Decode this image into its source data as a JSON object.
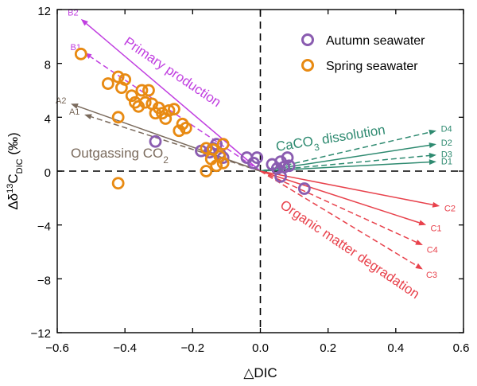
{
  "chart_data": {
    "type": "scatter",
    "xlabel": "△DIC",
    "ylabel_main": "Δδ",
    "ylabel_sup": "13",
    "ylabel_c": "C",
    "ylabel_sub": "DIC",
    "ylabel_unit": " (‰)",
    "xlim": [
      -0.6,
      0.6
    ],
    "ylim": [
      -12,
      12
    ],
    "xticks": [
      "−0.6",
      "−0.4",
      "−0.2",
      "0.0",
      "0.2",
      "0.4",
      "0.6"
    ],
    "yticks": [
      "12",
      "8",
      "4",
      "0",
      "−4",
      "−8",
      "−12"
    ],
    "grid": false,
    "legend_position": "top-right",
    "legend": [
      {
        "label": "Autumn seawater",
        "color": "#8a5cb0"
      },
      {
        "label": "Spring seawater",
        "color": "#e88a12"
      }
    ],
    "process_labels": [
      {
        "text": "Primary production",
        "color": "#c03ee0"
      },
      {
        "text": "Outgassing CO",
        "sub": "2",
        "color": "#7a6a5c"
      },
      {
        "text": "CaCO",
        "sub": "3",
        "tail": " dissolution",
        "color": "#2e8a70"
      },
      {
        "text": "Organic matter degradation",
        "color": "#e8424c"
      }
    ],
    "vectors": [
      {
        "label": "B2",
        "dx": -0.53,
        "dy": 11.3,
        "dashed": false,
        "color": "#c03ee0"
      },
      {
        "label": "B1",
        "dx": -0.52,
        "dy": 8.8,
        "dashed": true,
        "color": "#c03ee0"
      },
      {
        "label": "A2",
        "dx": -0.56,
        "dy": 5.0,
        "dashed": false,
        "color": "#7a6a5c"
      },
      {
        "label": "A1",
        "dx": -0.52,
        "dy": 4.2,
        "dashed": true,
        "color": "#7a6a5c"
      },
      {
        "label": "D4",
        "dx": 0.52,
        "dy": 3.0,
        "dashed": true,
        "color": "#2e8a70"
      },
      {
        "label": "D2",
        "dx": 0.52,
        "dy": 2.0,
        "dashed": false,
        "color": "#2e8a70"
      },
      {
        "label": "D3",
        "dx": 0.52,
        "dy": 1.2,
        "dashed": true,
        "color": "#2e8a70"
      },
      {
        "label": "D1",
        "dx": 0.52,
        "dy": 0.7,
        "dashed": false,
        "color": "#2e8a70"
      },
      {
        "label": "C2",
        "dx": 0.53,
        "dy": -2.6,
        "dashed": false,
        "color": "#e8424c"
      },
      {
        "label": "C1",
        "dx": 0.49,
        "dy": -4.0,
        "dashed": false,
        "color": "#e8424c"
      },
      {
        "label": "C4",
        "dx": 0.48,
        "dy": -5.5,
        "dashed": true,
        "color": "#e8424c"
      },
      {
        "label": "C3",
        "dx": 0.48,
        "dy": -7.3,
        "dashed": true,
        "color": "#e8424c"
      }
    ],
    "series": [
      {
        "name": "Autumn seawater",
        "color": "#8a5cb0",
        "points": [
          [
            -0.31,
            2.2
          ],
          [
            -0.175,
            1.5
          ],
          [
            -0.15,
            1.4
          ],
          [
            -0.14,
            1.7
          ],
          [
            -0.13,
            2.0
          ],
          [
            -0.12,
            1.3
          ],
          [
            -0.11,
            1.0
          ],
          [
            -0.04,
            1.0
          ],
          [
            -0.02,
            0.6
          ],
          [
            -0.01,
            1.0
          ],
          [
            0.035,
            0.5
          ],
          [
            0.05,
            0.2
          ],
          [
            0.06,
            0.7
          ],
          [
            0.07,
            0.3
          ],
          [
            0.08,
            1.0
          ],
          [
            0.085,
            0.4
          ],
          [
            0.06,
            -0.4
          ],
          [
            0.13,
            -1.3
          ]
        ]
      },
      {
        "name": "Spring seawater",
        "color": "#e88a12",
        "points": [
          [
            -0.53,
            8.7
          ],
          [
            -0.45,
            6.5
          ],
          [
            -0.42,
            7.0
          ],
          [
            -0.41,
            6.2
          ],
          [
            -0.4,
            6.8
          ],
          [
            -0.38,
            5.6
          ],
          [
            -0.37,
            5.1
          ],
          [
            -0.36,
            4.8
          ],
          [
            -0.35,
            6.0
          ],
          [
            -0.34,
            5.1
          ],
          [
            -0.33,
            6.0
          ],
          [
            -0.32,
            5.0
          ],
          [
            -0.31,
            4.3
          ],
          [
            -0.3,
            4.7
          ],
          [
            -0.29,
            4.3
          ],
          [
            -0.28,
            3.9
          ],
          [
            -0.27,
            4.5
          ],
          [
            -0.255,
            4.6
          ],
          [
            -0.24,
            3.0
          ],
          [
            -0.23,
            3.5
          ],
          [
            -0.22,
            3.2
          ],
          [
            -0.42,
            4.0
          ],
          [
            -0.42,
            -0.9
          ],
          [
            -0.16,
            1.7
          ],
          [
            -0.16,
            0.0
          ],
          [
            -0.145,
            0.9
          ],
          [
            -0.14,
            1.6
          ],
          [
            -0.13,
            0.4
          ],
          [
            -0.12,
            1.1
          ],
          [
            -0.11,
            0.6
          ],
          [
            -0.11,
            2.0
          ]
        ]
      }
    ]
  }
}
